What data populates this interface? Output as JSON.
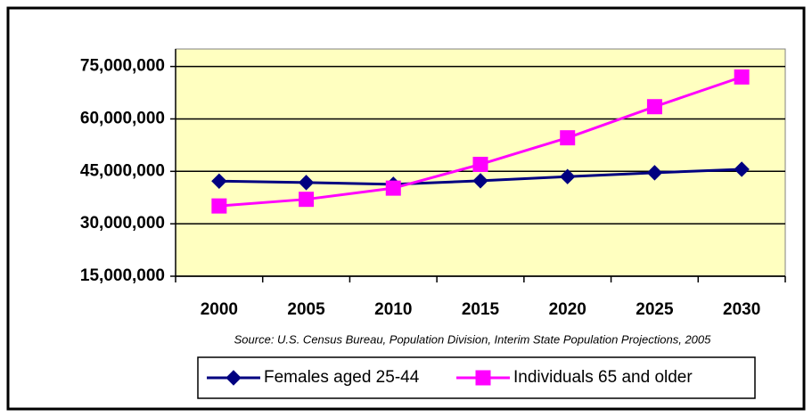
{
  "chart_data": {
    "type": "line",
    "categories": [
      "2000",
      "2005",
      "2010",
      "2015",
      "2020",
      "2025",
      "2030"
    ],
    "series": [
      {
        "name": "Females aged 25-44",
        "color": "#000080",
        "marker": "diamond",
        "values": [
          42200000,
          41800000,
          41300000,
          42300000,
          43500000,
          44600000,
          45600000
        ]
      },
      {
        "name": "Individuals 65 and older",
        "color": "#ff00ff",
        "marker": "square",
        "values": [
          35100000,
          37000000,
          40200000,
          47000000,
          54600000,
          63500000,
          72000000
        ]
      }
    ],
    "ylim": [
      15000000,
      80000000
    ],
    "yticks": [
      {
        "value": 15000000,
        "label": "15,000,000"
      },
      {
        "value": 30000000,
        "label": "30,000,000"
      },
      {
        "value": 45000000,
        "label": "45,000,000"
      },
      {
        "value": 60000000,
        "label": "60,000,000"
      },
      {
        "value": 75000000,
        "label": "75,000,000"
      }
    ],
    "grid": true,
    "plot_background": "#ffffc0",
    "annotation": "Source: U.S. Census Bureau, Population Division, Interim State Population Projections, 2005",
    "legend": "bottom"
  }
}
